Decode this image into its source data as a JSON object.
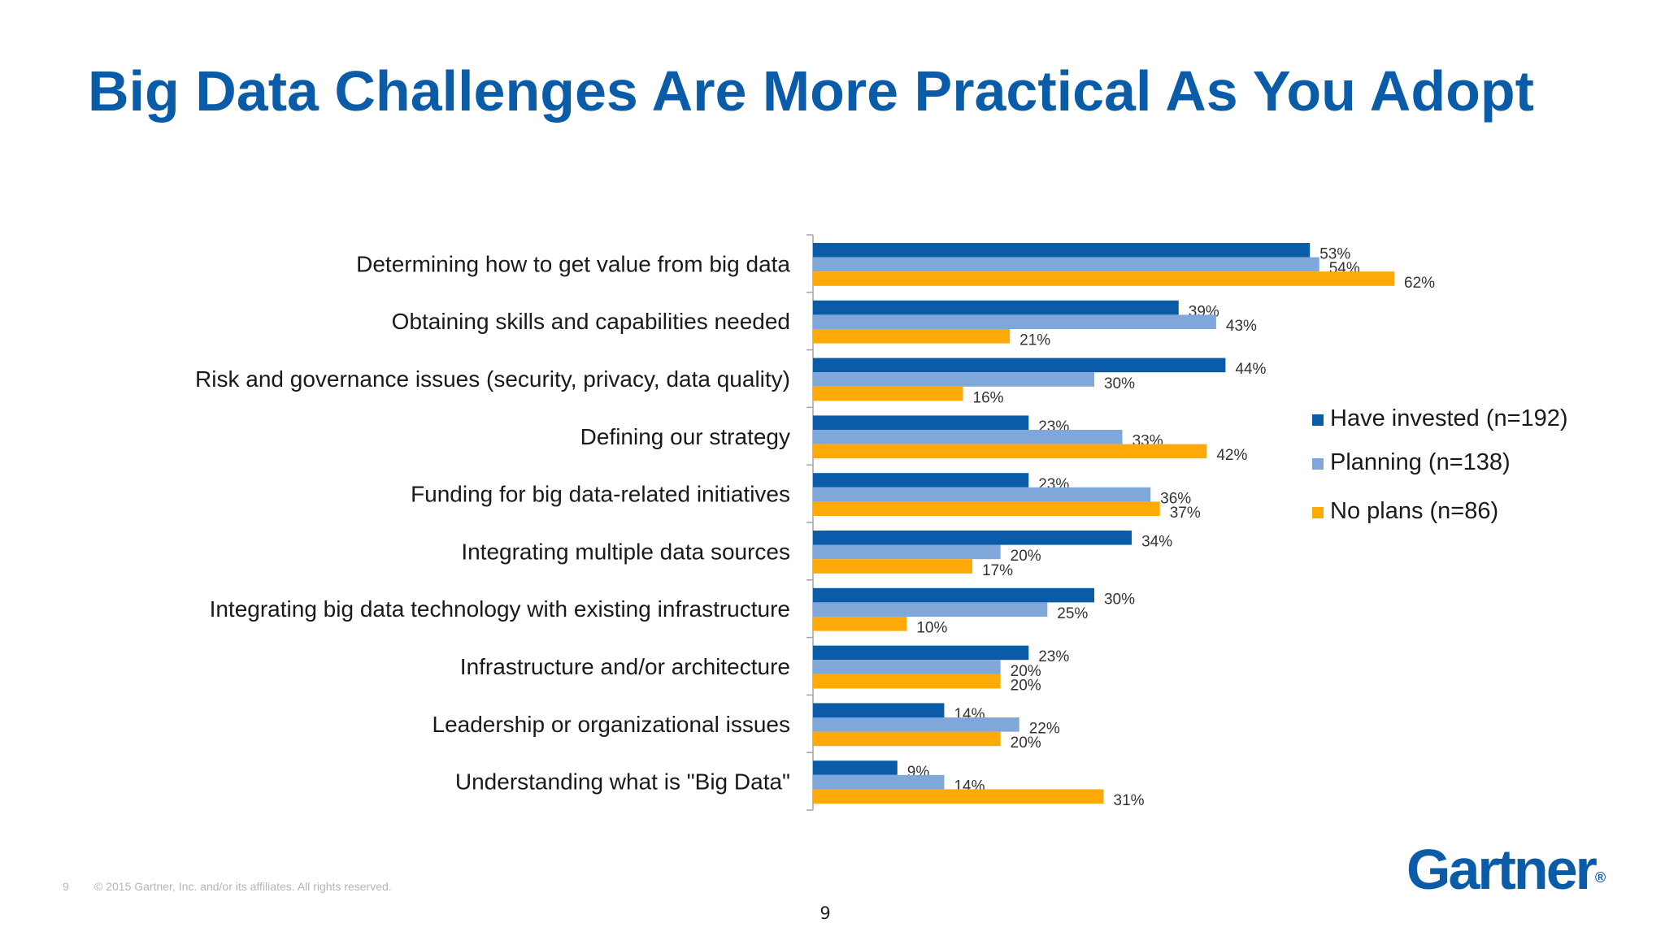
{
  "slide": {
    "title": "Big Data Challenges Are More Practical As You Adopt",
    "footer_number": "9",
    "copyright": "© 2015 Gartner, Inc. and/or its affiliates. All rights reserved.",
    "page_number": "9",
    "logo_text": "Gartner",
    "logo_mark": "®"
  },
  "colors": {
    "title": "#0a5ca8",
    "have_invested": "#0a5ca8",
    "planning": "#7fa7d9",
    "no_plans": "#fdaa08"
  },
  "chart_data": {
    "type": "bar",
    "orientation": "horizontal",
    "categories": [
      "Determining how to get value from big data",
      "Obtaining skills and capabilities needed",
      "Risk and governance issues (security, privacy, data quality)",
      "Defining our strategy",
      "Funding for big data-related initiatives",
      "Integrating multiple data sources",
      "Integrating big data technology with existing infrastructure",
      "Infrastructure and/or architecture",
      "Leadership or organizational issues",
      "Understanding what is \"Big Data\""
    ],
    "series": [
      {
        "name": "Have invested (n=192)",
        "color": "#0a5ca8",
        "values": [
          53,
          39,
          44,
          23,
          23,
          34,
          30,
          23,
          14,
          9
        ]
      },
      {
        "name": "Planning (n=138)",
        "color": "#7fa7d9",
        "values": [
          54,
          43,
          30,
          33,
          36,
          20,
          25,
          20,
          22,
          14
        ]
      },
      {
        "name": "No plans (n=86)",
        "color": "#fdaa08",
        "values": [
          62,
          21,
          16,
          42,
          37,
          17,
          10,
          20,
          20,
          31
        ]
      }
    ],
    "value_suffix": "%",
    "xlim": [
      0,
      70
    ],
    "grid": false,
    "legend_position": "right"
  }
}
